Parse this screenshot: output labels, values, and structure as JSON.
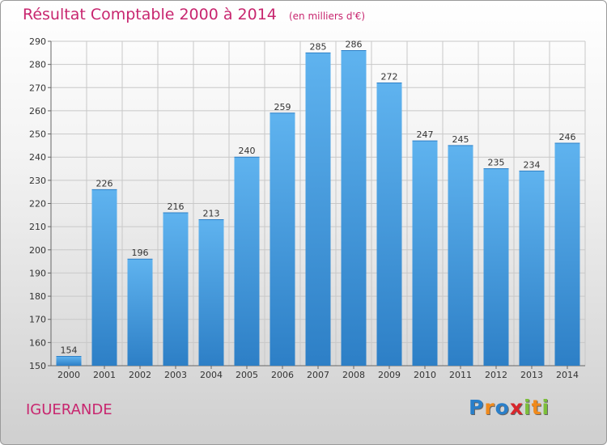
{
  "chart_data": {
    "type": "bar",
    "title": "Résultat Comptable 2000 à 2014",
    "subtitle": "(en milliers d'€)",
    "categories": [
      "2000",
      "2001",
      "2002",
      "2003",
      "2004",
      "2005",
      "2006",
      "2007",
      "2008",
      "2009",
      "2010",
      "2011",
      "2012",
      "2013",
      "2014"
    ],
    "values": [
      154,
      226,
      196,
      216,
      213,
      240,
      259,
      285,
      286,
      272,
      247,
      245,
      235,
      234,
      246
    ],
    "ylim": [
      150,
      290
    ],
    "yticks": [
      150,
      160,
      170,
      180,
      190,
      200,
      210,
      220,
      230,
      240,
      250,
      260,
      270,
      280,
      290
    ],
    "xlabel": "",
    "ylabel": "",
    "grid": true,
    "bar_color": "#4aa3e6"
  },
  "commune": "IGUERANDE",
  "logo": {
    "letters": [
      "P",
      "r",
      "o",
      "x",
      "i",
      "t",
      "i"
    ],
    "colors": [
      "#2a7fc9",
      "#f08a1c",
      "#2a7fc9",
      "#d8262c",
      "#7cbf3a",
      "#f08a1c",
      "#7cbf3a"
    ]
  }
}
